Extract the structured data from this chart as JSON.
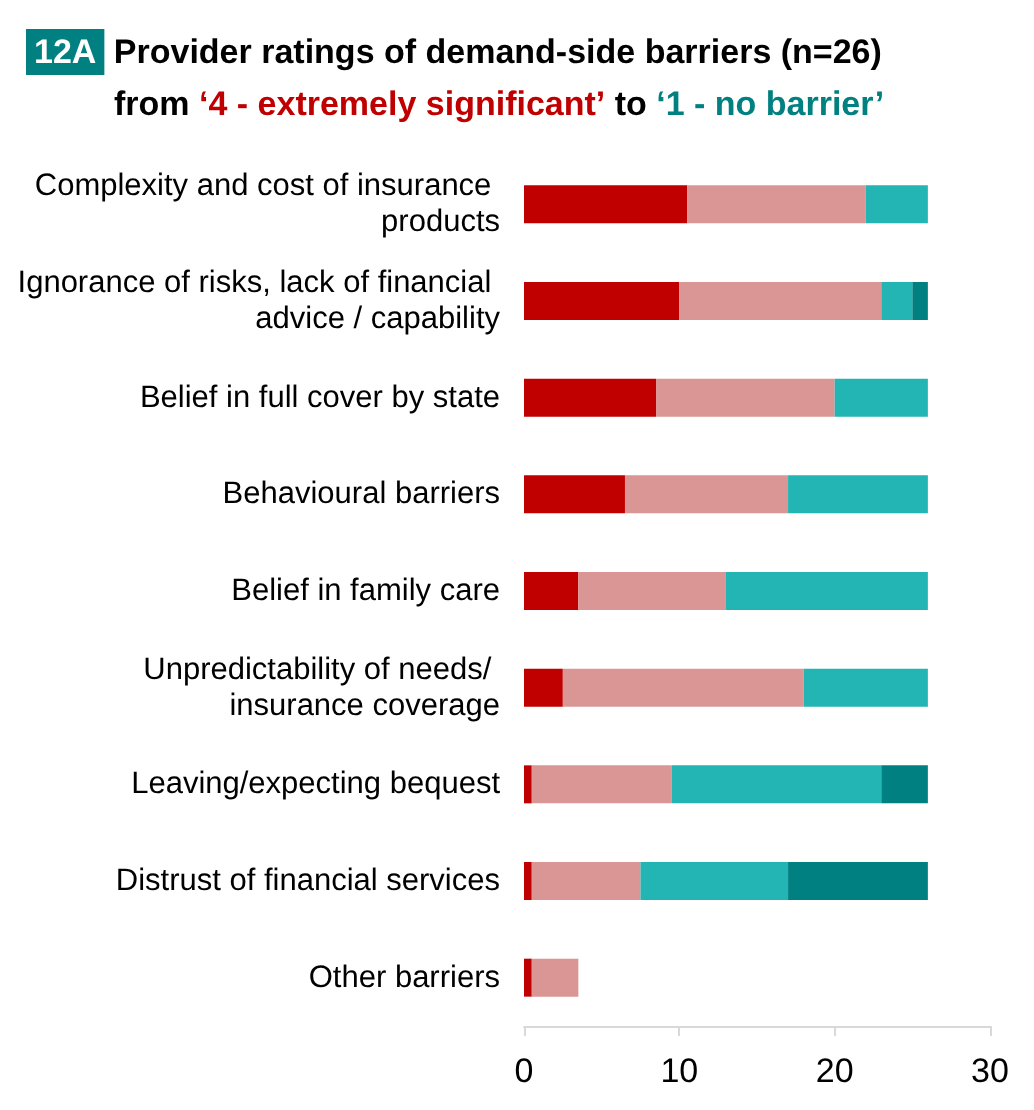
{
  "chart_data": {
    "type": "bar",
    "orientation": "horizontal",
    "stacked": true,
    "title": "12A Provider ratings of demand-side barriers (n=26)",
    "subtitle": "from ‘4 - extremely significant’ to ‘1 - no barrier’",
    "categories": [
      "Complexity and cost of insurance products",
      "Ignorance of risks, lack of financial advice / capability",
      "Belief in full cover by state",
      "Behavioural barriers",
      "Belief in family care",
      "Unpredictability of needs/ insurance coverage",
      "Leaving/expecting bequest",
      "Distrust of financial services",
      "Other barriers"
    ],
    "series": [
      {
        "color": "#c00000",
        "values": [
          10.5,
          10,
          8.5,
          6.5,
          3.5,
          2.5,
          0.5,
          0.5,
          0.5
        ]
      },
      {
        "color": "#d99694",
        "values": [
          11.5,
          13,
          11.5,
          10.5,
          9.5,
          15.5,
          9,
          7,
          3
        ]
      },
      {
        "color": "#23b4b4",
        "values": [
          4,
          2,
          6,
          9,
          13,
          8,
          13.5,
          9.5,
          null
        ]
      },
      {
        "color": "#008080",
        "values": [
          null,
          1,
          null,
          null,
          null,
          null,
          3,
          9,
          null
        ]
      }
    ],
    "xlim": [
      0,
      30
    ],
    "xticks": [
      0,
      10,
      20,
      30
    ]
  }
}
